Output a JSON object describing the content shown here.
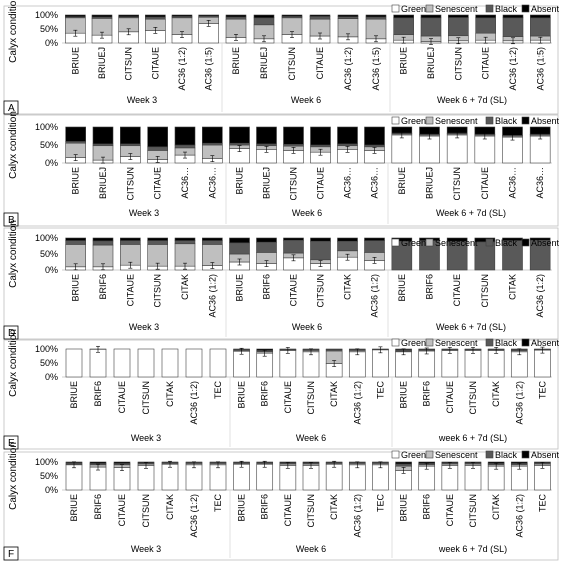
{
  "legend": [
    {
      "label": "Green",
      "color": "#ffffff"
    },
    {
      "label": "Senescent",
      "color": "#bfbfbf"
    },
    {
      "label": "Black",
      "color": "#595959"
    },
    {
      "label": "Absent",
      "color": "#000000"
    }
  ],
  "y_label": "Calyx condition",
  "y_ticks": [
    "0%",
    "50%",
    "100%"
  ],
  "chart_data": [
    {
      "panel": "A",
      "type": "bar",
      "stacked": true,
      "ylabel": "Calyx condition",
      "ylim": [
        0,
        100
      ],
      "groups": [
        {
          "label": "Week 3",
          "categories": [
            "BRIUE",
            "BRIUEJ",
            "CITSUN",
            "CITAUE",
            "AC36 (1:2)",
            "AC36 (1:5)"
          ],
          "series": {
            "Green": [
              35,
              28,
              40,
              45,
              30,
              70
            ],
            "Senescent": [
              55,
              60,
              50,
              40,
              60,
              22
            ],
            "Black": [
              4,
              5,
              4,
              8,
              5,
              4
            ],
            "Absent": [
              6,
              7,
              6,
              7,
              5,
              4
            ]
          }
        },
        {
          "label": "Week 6",
          "categories": [
            "BRIUE",
            "BRIUEJ",
            "CITSUN",
            "CITAUE",
            "AC36 (1:2)",
            "AC36 (1:5)"
          ],
          "series": {
            "Green": [
              20,
              15,
              30,
              25,
              22,
              15
            ],
            "Senescent": [
              65,
              50,
              60,
              60,
              65,
              70
            ],
            "Black": [
              8,
              25,
              5,
              10,
              7,
              8
            ],
            "Absent": [
              7,
              10,
              5,
              5,
              6,
              7
            ]
          }
        },
        {
          "label": "Week 6 + 7d (SL)",
          "categories": [
            "BRIUE",
            "BRIUEJ",
            "CITSUN",
            "CITAUE",
            "AC36 (1:2)",
            "AC36 (1:5)"
          ],
          "series": {
            "Green": [
              10,
              5,
              8,
              10,
              8,
              10
            ],
            "Senescent": [
              20,
              20,
              18,
              25,
              15,
              15
            ],
            "Black": [
              60,
              65,
              65,
              55,
              67,
              65
            ],
            "Absent": [
              10,
              10,
              9,
              10,
              10,
              10
            ]
          }
        }
      ]
    },
    {
      "panel": "B",
      "type": "bar",
      "stacked": true,
      "ylabel": "Calyx condition",
      "ylim": [
        0,
        100
      ],
      "groups": [
        {
          "label": "Week 3",
          "categories": [
            "BRIUE",
            "BRIUEJ",
            "CITSUN",
            "CITAUE",
            "AC36…",
            "AC36…"
          ],
          "series": {
            "Green": [
              15,
              8,
              18,
              10,
              22,
              12
            ],
            "Senescent": [
              40,
              40,
              30,
              25,
              20,
              38
            ],
            "Black": [
              5,
              5,
              5,
              10,
              8,
              5
            ],
            "Absent": [
              40,
              47,
              47,
              55,
              50,
              45
            ]
          }
        },
        {
          "label": "Week 6",
          "categories": [
            "BRIUE",
            "BRIUEJ",
            "CITSUN",
            "CITAUE",
            "AC36…",
            "AC36…"
          ],
          "series": {
            "Green": [
              40,
              38,
              35,
              30,
              38,
              35
            ],
            "Senescent": [
              10,
              10,
              12,
              15,
              10,
              10
            ],
            "Black": [
              5,
              5,
              5,
              5,
              5,
              5
            ],
            "Absent": [
              45,
              47,
              48,
              50,
              47,
              50
            ]
          }
        },
        {
          "label": "Week 6 + 7d (SL)",
          "categories": [
            "BRIUE",
            "BRIUEJ",
            "CITSUN",
            "CITAUE",
            "AC36…",
            "AC36…"
          ],
          "series": {
            "Green": [
              78,
              75,
              78,
              75,
              72,
              75
            ],
            "Senescent": [
              3,
              3,
              3,
              3,
              3,
              3
            ],
            "Black": [
              2,
              2,
              2,
              2,
              2,
              2
            ],
            "Absent": [
              17,
              20,
              17,
              20,
              23,
              20
            ]
          }
        }
      ]
    },
    {
      "panel": "D",
      "type": "bar",
      "stacked": true,
      "ylabel": "Calyx condition",
      "ylim": [
        0,
        100
      ],
      "groups": [
        {
          "label": "Week 3",
          "categories": [
            "BRIUE",
            "BRIF6",
            "CITAUE",
            "CITSUN",
            "CITAK",
            "AC36 (1:2)"
          ],
          "series": {
            "Green": [
              10,
              10,
              15,
              12,
              12,
              14
            ],
            "Senescent": [
              70,
              68,
              65,
              68,
              70,
              66
            ],
            "Black": [
              12,
              13,
              12,
              12,
              10,
              12
            ],
            "Absent": [
              8,
              9,
              8,
              8,
              8,
              8
            ]
          }
        },
        {
          "label": "Week 6",
          "categories": [
            "BRIUE",
            "BRIF6",
            "CITAUE",
            "CITSUN",
            "CITAK",
            "AC36 (1:2)"
          ],
          "series": {
            "Green": [
              25,
              20,
              38,
              20,
              40,
              30
            ],
            "Senescent": [
              25,
              35,
              15,
              12,
              20,
              25
            ],
            "Black": [
              35,
              32,
              40,
              58,
              30,
              37
            ],
            "Absent": [
              15,
              13,
              7,
              10,
              10,
              8
            ]
          }
        },
        {
          "label": "Week 6 + 7d (SL)",
          "categories": [
            "BRIUE",
            "BRIF6",
            "CITAUE",
            "CITSUN",
            "CITAK",
            "AC36 (1:2)"
          ],
          "series": {
            "Green": [
              0,
              0,
              0,
              0,
              0,
              0
            ],
            "Senescent": [
              0,
              0,
              0,
              0,
              0,
              0
            ],
            "Black": [
              90,
              92,
              90,
              88,
              92,
              93
            ],
            "Absent": [
              10,
              8,
              10,
              12,
              8,
              7
            ]
          }
        }
      ]
    },
    {
      "panel": "E",
      "type": "bar",
      "stacked": true,
      "ylabel": "Calyx condition",
      "ylim": [
        0,
        100
      ],
      "groups": [
        {
          "label": "Week 3",
          "categories": [
            "BRIUE",
            "BRIF6",
            "CITAUE",
            "CITSUN",
            "CITAK",
            "AC36 (1:2)",
            "TEC"
          ],
          "series": {
            "Green": [
              100,
              99,
              100,
              100,
              100,
              100,
              100
            ],
            "Senescent": [
              0,
              1,
              0,
              0,
              0,
              0,
              0
            ],
            "Black": [
              0,
              0,
              0,
              0,
              0,
              0,
              0
            ],
            "Absent": [
              0,
              0,
              0,
              0,
              0,
              0,
              0
            ]
          }
        },
        {
          "label": "Week 6",
          "categories": [
            "BRIUE",
            "BRIF6",
            "CITAUE",
            "CITSUN",
            "CITAK",
            "AC36 (1:2)",
            "TEC"
          ],
          "series": {
            "Green": [
              92,
              85,
              95,
              90,
              48,
              90,
              97
            ],
            "Senescent": [
              3,
              5,
              2,
              5,
              45,
              5,
              2
            ],
            "Black": [
              3,
              5,
              2,
              3,
              5,
              3,
              1
            ],
            "Absent": [
              2,
              5,
              1,
              2,
              2,
              2,
              0
            ]
          }
        },
        {
          "label": "week 6 + 7d (SL)",
          "categories": [
            "BRIUE",
            "BRIF6",
            "CITAUE",
            "CITSUN",
            "CITAK",
            "AC36 (1:2)",
            "TEC"
          ],
          "series": {
            "Green": [
              90,
              93,
              95,
              95,
              95,
              90,
              96
            ],
            "Senescent": [
              3,
              3,
              2,
              2,
              2,
              4,
              2
            ],
            "Black": [
              4,
              2,
              2,
              2,
              2,
              4,
              1
            ],
            "Absent": [
              3,
              2,
              1,
              1,
              1,
              2,
              1
            ]
          }
        }
      ]
    },
    {
      "panel": "F",
      "type": "bar",
      "stacked": true,
      "ylabel": "Calyx condition",
      "ylim": [
        0,
        100
      ],
      "groups": [
        {
          "label": "Week 3",
          "categories": [
            "BRIUE",
            "BRIF6",
            "CITAUE",
            "CITSUN",
            "CITAK",
            "AC36 (1:2)",
            "TEC"
          ],
          "series": {
            "Green": [
              90,
              82,
              80,
              88,
              92,
              90,
              90
            ],
            "Senescent": [
              3,
              8,
              10,
              5,
              3,
              5,
              5
            ],
            "Black": [
              4,
              5,
              5,
              4,
              3,
              3,
              3
            ],
            "Absent": [
              3,
              5,
              5,
              3,
              2,
              2,
              2
            ]
          }
        },
        {
          "label": "Week 6",
          "categories": [
            "BRIUE",
            "BRIF6",
            "CITAUE",
            "CITSUN",
            "CITAK",
            "AC36 (1:2)",
            "TEC"
          ],
          "series": {
            "Green": [
              92,
              92,
              88,
              88,
              92,
              90,
              90
            ],
            "Senescent": [
              3,
              3,
              5,
              5,
              3,
              5,
              5
            ],
            "Black": [
              3,
              3,
              4,
              4,
              3,
              3,
              3
            ],
            "Absent": [
              2,
              2,
              3,
              3,
              2,
              2,
              2
            ]
          }
        },
        {
          "label": "week 6 + 7d (SL)",
          "categories": [
            "BRIUE",
            "BRIF6",
            "CITAUE",
            "CITSUN",
            "CITAK",
            "AC36 (1:2)",
            "TEC"
          ],
          "series": {
            "Green": [
              70,
              85,
              88,
              88,
              85,
              85,
              88
            ],
            "Senescent": [
              15,
              5,
              5,
              5,
              5,
              5,
              5
            ],
            "Black": [
              8,
              5,
              4,
              4,
              5,
              5,
              4
            ],
            "Absent": [
              7,
              5,
              3,
              3,
              5,
              5,
              3
            ]
          }
        }
      ]
    }
  ]
}
